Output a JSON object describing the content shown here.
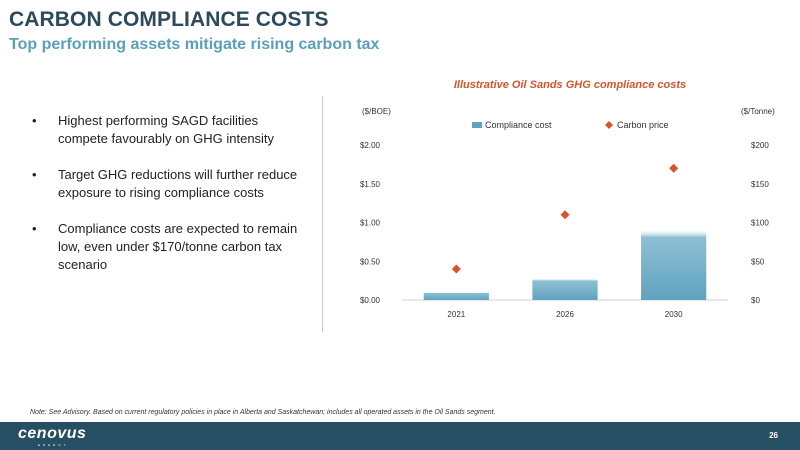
{
  "header": {
    "title": "CARBON COMPLIANCE COSTS",
    "subtitle": "Top performing assets mitigate rising carbon tax"
  },
  "bullets": [
    "Highest performing SAGD facilities compete favourably on GHG intensity",
    "Target GHG reductions will further reduce exposure to rising compliance costs",
    "Compliance costs are expected to remain low, even under $170/tonne carbon tax scenario"
  ],
  "chart_data": {
    "type": "bar",
    "title": "Illustrative Oil Sands GHG compliance costs",
    "categories": [
      "2021",
      "2026",
      "2030"
    ],
    "series": [
      {
        "name": "Compliance cost",
        "kind": "bar",
        "axis": "left",
        "color": "#5fa3c0",
        "values": [
          0.1,
          0.28,
          0.92
        ]
      },
      {
        "name": "Carbon price",
        "kind": "marker",
        "axis": "right",
        "color": "#d9532b",
        "values": [
          40,
          110,
          170
        ]
      }
    ],
    "left_axis": {
      "label": "($/BOE)",
      "ylim": [
        0,
        2.0
      ],
      "ticks": [
        "$0.00",
        "$0.50",
        "$1.00",
        "$1.50",
        "$2.00"
      ]
    },
    "right_axis": {
      "label": "($/Tonne)",
      "ylim": [
        0,
        200
      ],
      "ticks": [
        "$0",
        "$50",
        "$100",
        "$150",
        "$200"
      ]
    },
    "legend_position": "top-center",
    "grid": false
  },
  "footer": {
    "note": "Note: See Advisory. Based on current regulatory policies in place in Alberta and Saskatchewan; includes all operated assets in the Oil Sands segment.",
    "logo": "cenovus",
    "logo_sub": "ENERGY",
    "page_number": "26"
  },
  "colors": {
    "title": "#2c4a5c",
    "subtitle": "#5aa0bd",
    "chart_title": "#d9532b",
    "footer_bg": "#274f63"
  }
}
